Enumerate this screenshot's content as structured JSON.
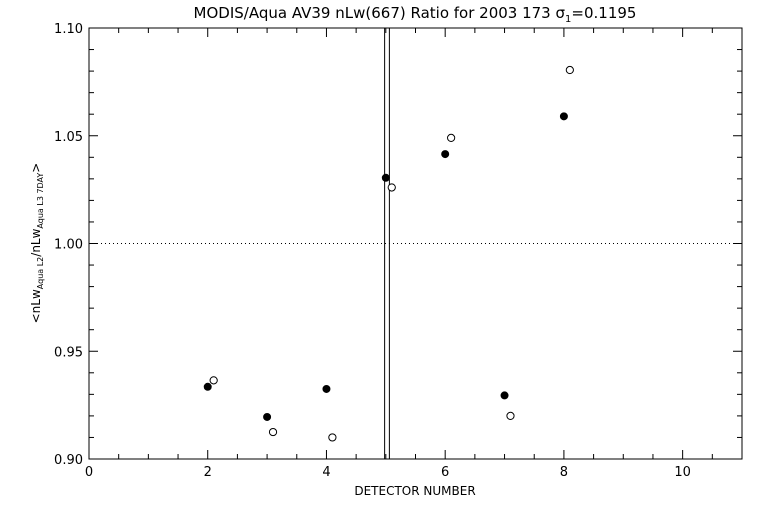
{
  "chart_data": {
    "type": "scatter",
    "title": "MODIS/Aqua AV39 nLw(667) Ratio for 2003 173 σ1=0.1195",
    "xlabel": "DETECTOR NUMBER",
    "ylabel": "<nLwAqua L2/nLwAqua L3 7DAY>",
    "xlim": [
      0,
      11
    ],
    "ylim": [
      0.9,
      1.1
    ],
    "x_ticks": [
      "0",
      "2",
      "4",
      "6",
      "8",
      "10"
    ],
    "y_ticks": [
      "0.90",
      "0.95",
      "1.00",
      "1.05",
      "1.10"
    ],
    "reference_line_y": 1.0,
    "vertical_lines_x": [
      4.98,
      5.06
    ],
    "series": [
      {
        "marker": "filled-circle",
        "x": [
          2,
          3,
          4,
          5,
          6,
          7,
          8
        ],
        "y": [
          0.9335,
          0.9195,
          0.9325,
          1.0305,
          1.0415,
          0.9295,
          1.059
        ]
      },
      {
        "marker": "open-circle",
        "x": [
          2.1,
          3.1,
          4.1,
          5.1,
          6.1,
          7.1,
          8.1
        ],
        "y": [
          0.9365,
          0.9125,
          0.91,
          1.026,
          1.049,
          0.92,
          1.0805
        ]
      }
    ]
  }
}
